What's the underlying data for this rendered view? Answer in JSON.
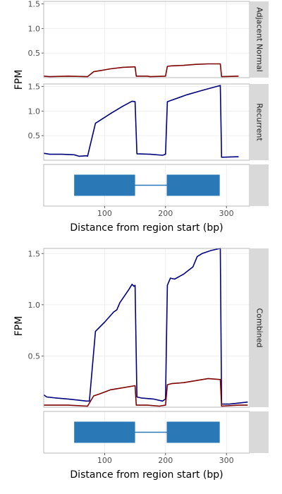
{
  "colors": {
    "normal": "#7f0000",
    "recurrent": "#00007f",
    "gene_block": "#2b78b7",
    "strip": "#d9d9d9",
    "panel_border": "#b3b3b3",
    "grid": "#ebebeb"
  },
  "chart_data": [
    {
      "type": "line",
      "facet": "Adjacent Normal",
      "ylabel": "FPM",
      "xlim": [
        0,
        338
      ],
      "ylim": [
        0,
        1.55
      ],
      "yticks": [
        0.5,
        1.0,
        1.5
      ],
      "ytick_labels": [
        "0.5",
        "1.0",
        "1.5"
      ],
      "series": [
        {
          "color_key": "normal",
          "x": [
            0,
            10,
            40,
            72,
            82,
            92,
            110,
            130,
            150,
            152,
            170,
            175,
            200,
            203,
            210,
            230,
            250,
            270,
            290,
            292,
            320
          ],
          "y": [
            0.03,
            0.02,
            0.03,
            0.02,
            0.12,
            0.14,
            0.18,
            0.21,
            0.22,
            0.03,
            0.03,
            0.02,
            0.03,
            0.23,
            0.24,
            0.25,
            0.27,
            0.28,
            0.28,
            0.02,
            0.03
          ]
        }
      ]
    },
    {
      "type": "line",
      "facet": "Recurrent",
      "ylabel": "",
      "xlim": [
        0,
        338
      ],
      "ylim": [
        0,
        1.55
      ],
      "yticks": [
        0.5,
        1.0,
        1.5
      ],
      "ytick_labels": [
        "0.5",
        "1.0",
        "1.5"
      ],
      "series": [
        {
          "color_key": "recurrent",
          "x": [
            0,
            10,
            30,
            50,
            58,
            70,
            72,
            85,
            110,
            130,
            145,
            150,
            153,
            175,
            195,
            200,
            203,
            210,
            235,
            260,
            290,
            292,
            320
          ],
          "y": [
            0.14,
            0.12,
            0.12,
            0.11,
            0.08,
            0.09,
            0.08,
            0.75,
            0.95,
            1.1,
            1.2,
            1.19,
            0.13,
            0.12,
            0.1,
            0.12,
            1.19,
            1.22,
            1.33,
            1.42,
            1.52,
            0.06,
            0.07
          ]
        }
      ]
    },
    {
      "type": "line",
      "facet": "Combined",
      "ylabel": "FPM",
      "xlim": [
        0,
        338
      ],
      "ylim": [
        0,
        1.55
      ],
      "yticks": [
        0.5,
        1.0,
        1.5
      ],
      "ytick_labels": [
        "0.5",
        "1.0",
        "1.5"
      ],
      "series": [
        {
          "color_key": "recurrent",
          "x": [
            0,
            5,
            20,
            40,
            55,
            70,
            75,
            85,
            100,
            115,
            120,
            125,
            140,
            145,
            148,
            150,
            153,
            160,
            180,
            195,
            200,
            203,
            208,
            215,
            230,
            245,
            252,
            260,
            275,
            290,
            292,
            305,
            320,
            335
          ],
          "y": [
            0.12,
            0.1,
            0.09,
            0.08,
            0.07,
            0.06,
            0.06,
            0.74,
            0.83,
            0.93,
            0.95,
            1.02,
            1.15,
            1.2,
            1.18,
            1.19,
            0.1,
            0.09,
            0.08,
            0.06,
            0.08,
            1.19,
            1.26,
            1.25,
            1.3,
            1.37,
            1.47,
            1.5,
            1.53,
            1.55,
            0.03,
            0.03,
            0.04,
            0.05
          ]
        },
        {
          "color_key": "normal",
          "x": [
            0,
            10,
            40,
            72,
            82,
            92,
            110,
            130,
            150,
            152,
            170,
            190,
            200,
            203,
            210,
            230,
            250,
            270,
            290,
            292,
            320,
            335
          ],
          "y": [
            0.02,
            0.02,
            0.02,
            0.01,
            0.11,
            0.13,
            0.17,
            0.19,
            0.21,
            0.02,
            0.02,
            0.01,
            0.02,
            0.22,
            0.23,
            0.24,
            0.26,
            0.28,
            0.27,
            0.01,
            0.02,
            0.02
          ]
        }
      ]
    }
  ],
  "gene_track": {
    "exons": [
      {
        "start": 50,
        "end": 150
      },
      {
        "start": 202,
        "end": 289
      }
    ],
    "intron": {
      "start": 150,
      "end": 202
    }
  },
  "x_axis": {
    "ticks": [
      100,
      200,
      300
    ],
    "tick_labels": [
      "100",
      "200",
      "300"
    ],
    "xlabel": "Distance from region start (bp)"
  }
}
